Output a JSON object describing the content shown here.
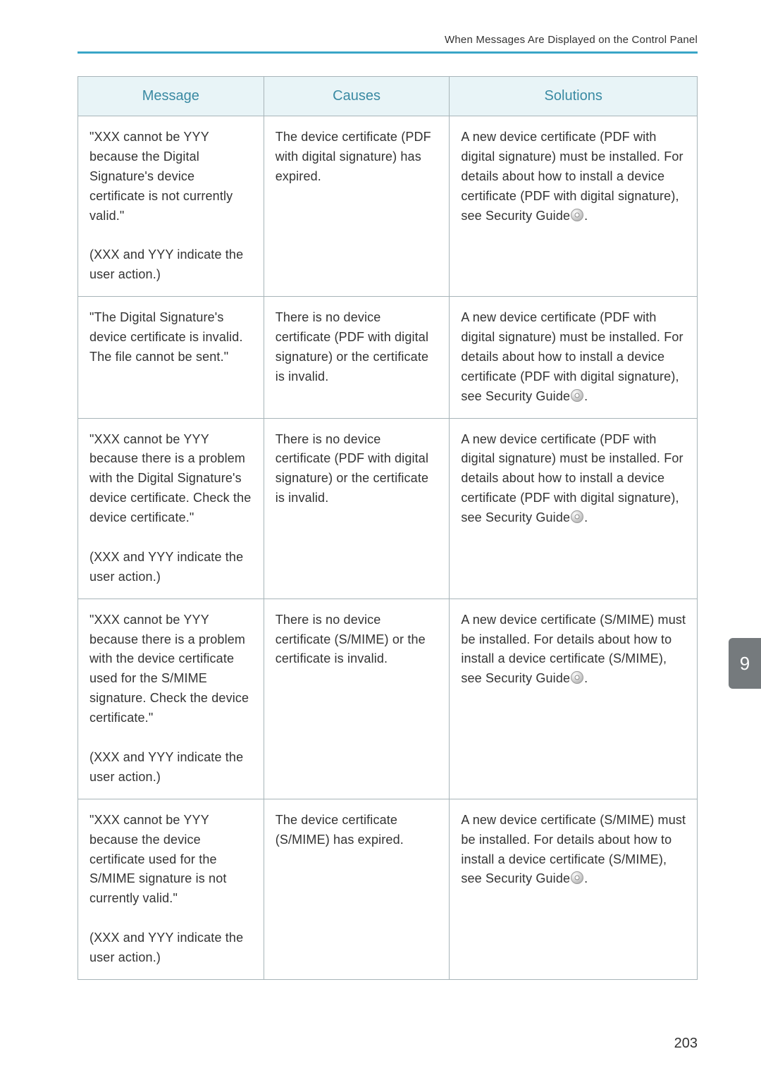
{
  "header": {
    "running_title": "When Messages Are Displayed on the Control Panel"
  },
  "table": {
    "columns": {
      "message": "Message",
      "causes": "Causes",
      "solutions": "Solutions"
    },
    "rows": [
      {
        "message": "\"XXX cannot be YYY because the Digital Signature's device certificate is not currently valid.\"\n\n(XXX and YYY indicate the user action.)",
        "causes": "The device certificate (PDF with digital signature) has expired.",
        "solutions_pre": "A new device certificate (PDF with digital signature) must be installed. For details about how to install a device certificate (PDF with digital signature), see Security Guide",
        "solutions_post": "."
      },
      {
        "message": "\"The Digital Signature's device certificate is invalid. The file cannot be sent.\"",
        "causes": "There is no device certificate (PDF with digital signature) or the certificate is invalid.",
        "solutions_pre": "A new device certificate (PDF with digital signature) must be installed. For details about how to install a device certificate (PDF with digital signature), see Security Guide",
        "solutions_post": "."
      },
      {
        "message": "\"XXX cannot be YYY because there is a problem with the Digital Signature's device certificate. Check the device certificate.\"\n\n(XXX and YYY indicate the user action.)",
        "causes": "There is no device certificate (PDF with digital signature) or the certificate is invalid.",
        "solutions_pre": "A new device certificate (PDF with digital signature) must be installed. For details about how to install a device certificate (PDF with digital signature), see Security Guide",
        "solutions_post": "."
      },
      {
        "message": "\"XXX cannot be YYY because there is a problem with the device certificate used for the S/MIME signature. Check the device certificate.\"\n\n(XXX and YYY indicate the user action.)",
        "causes": "There is no device certificate (S/MIME) or the certificate is invalid.",
        "solutions_pre": "A new device certificate (S/MIME) must be installed. For details about how to install a device certificate (S/MIME), see Security Guide",
        "solutions_post": "."
      },
      {
        "message": "\"XXX cannot be YYY because the device certificate used for the S/MIME signature is not currently valid.\"\n\n(XXX and YYY indicate the user action.)",
        "causes": "The device certificate (S/MIME) has expired.",
        "solutions_pre": "A new device certificate (S/MIME) must be installed. For details about how to install a device certificate (S/MIME), see Security Guide",
        "solutions_post": "."
      }
    ]
  },
  "side_tab": {
    "label": "9"
  },
  "footer": {
    "page_number": "203"
  }
}
